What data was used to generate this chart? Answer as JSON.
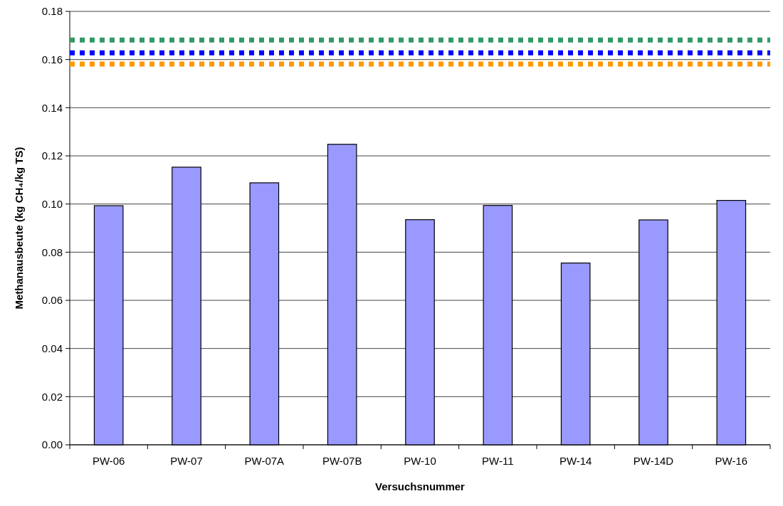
{
  "chart_data": {
    "type": "bar",
    "xlabel": "Versuchsnummer",
    "ylabel": "Methanausbeute (kg CH₄/kg TS)",
    "categories": [
      "PW-06",
      "PW-07",
      "PW-07A",
      "PW-07B",
      "PW-10",
      "PW-11",
      "PW-14",
      "PW-14D",
      "PW-16"
    ],
    "values": [
      0.0993,
      0.1153,
      0.1088,
      0.1248,
      0.0935,
      0.0994,
      0.0755,
      0.0934,
      0.1015
    ],
    "color": "#9999ff",
    "ylim": [
      0,
      0.18
    ],
    "yticks": [
      {
        "value": 0,
        "label": "0.00"
      },
      {
        "value": 0.02,
        "label": "0.02"
      },
      {
        "value": 0.04,
        "label": "0.04"
      },
      {
        "value": 0.06,
        "label": "0.06"
      },
      {
        "value": 0.08,
        "label": "0.08"
      },
      {
        "value": 0.1,
        "label": "0.10"
      },
      {
        "value": 0.12,
        "label": "0.12"
      },
      {
        "value": 0.14,
        "label": "0.14"
      },
      {
        "value": 0.16,
        "label": "0.16"
      },
      {
        "value": 0.18,
        "label": "0.18"
      }
    ],
    "grid": "y",
    "ref_lines": [
      {
        "axis": "y",
        "value": 0.1681,
        "color": "#339966",
        "line_style": "dotted"
      },
      {
        "axis": "y",
        "value": 0.1628,
        "color": "#0000ff",
        "line_style": "dotted"
      },
      {
        "axis": "y",
        "value": 0.1581,
        "color": "#ff9900",
        "line_style": "dotted"
      }
    ]
  }
}
